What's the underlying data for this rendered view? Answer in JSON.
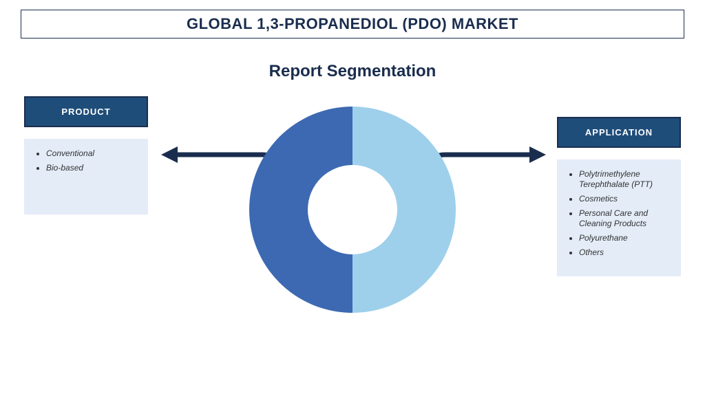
{
  "title": {
    "text": "GLOBAL 1,3-PROPANEDIOL (PDO) MARKET",
    "color": "#1a2d4e",
    "fontsize": 22,
    "border_color": "#1a2d4e",
    "background": "#ffffff"
  },
  "subtitle": {
    "text": "Report Segmentation",
    "color": "#1a2d4e",
    "fontsize": 24
  },
  "categories": {
    "product": {
      "label": "PRODUCT",
      "header_bg": "#1f4d7a",
      "header_border": "#1a2d4e",
      "header_fontsize": 13,
      "items_bg": "#e3ecf7",
      "items_text_color": "#333333",
      "items_fontsize": 12,
      "items": [
        "Conventional",
        "Bio-based"
      ]
    },
    "application": {
      "label": "APPLICATION",
      "header_bg": "#1f4d7a",
      "header_border": "#1a2d4e",
      "header_fontsize": 13,
      "items_bg": "#e3ecf7",
      "items_text_color": "#333333",
      "items_fontsize": 12,
      "items": [
        "Polytrimethylene Terephthalate (PTT)",
        "Cosmetics",
        "Personal Care and Cleaning Products",
        "Polyurethane",
        "Others"
      ]
    }
  },
  "donut": {
    "type": "pie",
    "outer_radius": 150,
    "inner_radius": 65,
    "slices": [
      {
        "value": 50,
        "color": "#9ed0eb"
      },
      {
        "value": 50,
        "color": "#3d69b2"
      }
    ],
    "center_hole_color": "#ffffff"
  },
  "arrows": {
    "stroke_color": "#1a2d4e",
    "stroke_width": 7,
    "head_color": "#1a2d4e"
  },
  "background": "#ffffff"
}
